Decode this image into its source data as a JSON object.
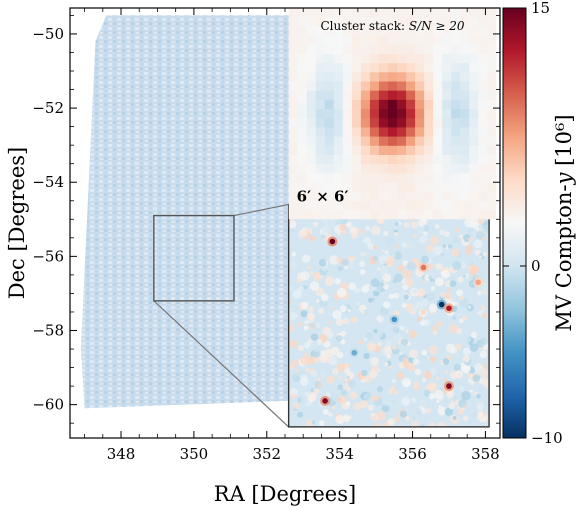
{
  "chart_data": {
    "type": "heatmap",
    "title": "",
    "xlabel": "RA [Degrees]",
    "ylabel": "Dec [Degrees]",
    "xlim": [
      346.6,
      358.4
    ],
    "ylim": [
      -60.9,
      -49.3
    ],
    "x_ticks": [
      348,
      350,
      352,
      354,
      356,
      358
    ],
    "y_ticks": [
      -50,
      -52,
      -54,
      -56,
      -58,
      -60
    ],
    "x_tick_labels": [
      "348",
      "350",
      "352",
      "354",
      "356",
      "358"
    ],
    "y_tick_labels": [
      "−50",
      "−52",
      "−54",
      "−56",
      "−58",
      "−60"
    ],
    "colorbar": {
      "label": "MV Compton-y [10⁶]",
      "label_text": "MV Compton-",
      "label_var": "y",
      "label_unit": " [10⁶]",
      "vmin": -10,
      "vmax": 15,
      "ticks": [
        15,
        0,
        -10
      ],
      "tick_labels": [
        "15",
        "0",
        "−10"
      ],
      "colormap": "RdBu_r",
      "colors": [
        "#053061",
        "#2166ac",
        "#4393c3",
        "#92c5de",
        "#d1e5f0",
        "#f7f7f7",
        "#fddbc7",
        "#f4a582",
        "#d6604d",
        "#b2182b",
        "#67001f"
      ]
    },
    "footprint": {
      "corners_radec": [
        [
          347.6,
          -49.5
        ],
        [
          352.6,
          -49.5
        ],
        [
          358.0,
          -49.8
        ],
        [
          358.0,
          -59.4
        ],
        [
          352.5,
          -59.9
        ],
        [
          347.0,
          -60.1
        ],
        [
          346.9,
          -58.5
        ],
        [
          347.3,
          -50.2
        ]
      ],
      "fill_color": "#c9dcee"
    },
    "zoom_box": {
      "ra_range": [
        348.9,
        351.1
      ],
      "dec_range": [
        -57.2,
        -54.9
      ],
      "edge_color": "#555555"
    },
    "zoom_inset": {
      "ra_range": [
        352.6,
        358.1
      ],
      "dec_range": [
        -60.6,
        -54.6
      ],
      "edge_color": "#333333"
    },
    "stack_inset": {
      "title_text": "Cluster stack: ",
      "title_math": "S/N ≥ 20",
      "title": "Cluster stack: S/N ≥ 20",
      "size_label": "6′ × 6′",
      "ra_range": [
        352.6,
        358.3
      ],
      "dec_range": [
        -55.0,
        -49.3
      ],
      "grid": 23,
      "center_value": 15
    },
    "point_sources": [
      {
        "ra": 353.8,
        "dec": -55.6,
        "y": 15
      },
      {
        "ra": 357.0,
        "dec": -59.5,
        "y": 14
      },
      {
        "ra": 353.6,
        "dec": -59.9,
        "y": 14
      },
      {
        "ra": 356.8,
        "dec": -57.3,
        "y": -10
      },
      {
        "ra": 357.0,
        "dec": -57.4,
        "y": 12
      },
      {
        "ra": 356.3,
        "dec": -56.3,
        "y": 8
      },
      {
        "ra": 355.5,
        "dec": -57.7,
        "y": -6
      },
      {
        "ra": 357.8,
        "dec": -56.7,
        "y": 6
      },
      {
        "ra": 354.4,
        "dec": -58.6,
        "y": -5
      }
    ],
    "grid": "off",
    "legend": "none"
  }
}
